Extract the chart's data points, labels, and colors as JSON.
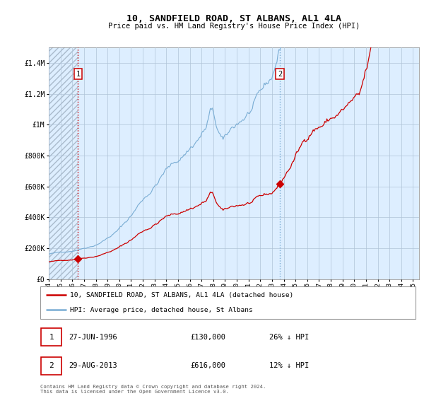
{
  "title": "10, SANDFIELD ROAD, ST ALBANS, AL1 4LA",
  "subtitle": "Price paid vs. HM Land Registry's House Price Index (HPI)",
  "legend_line1": "10, SANDFIELD ROAD, ST ALBANS, AL1 4LA (detached house)",
  "legend_line2": "HPI: Average price, detached house, St Albans",
  "annotation1_date": "27-JUN-1996",
  "annotation1_price": "£130,000",
  "annotation1_hpi": "26% ↓ HPI",
  "annotation2_date": "29-AUG-2013",
  "annotation2_price": "£616,000",
  "annotation2_hpi": "12% ↓ HPI",
  "footer": "Contains HM Land Registry data © Crown copyright and database right 2024.\nThis data is licensed under the Open Government Licence v3.0.",
  "xlim_start": 1994.0,
  "xlim_end": 2025.5,
  "ylim_min": 0,
  "ylim_max": 1500000,
  "sale1_year": 1996.49,
  "sale1_price": 130000,
  "sale2_year": 2013.66,
  "sale2_price": 616000,
  "line_color_red": "#cc0000",
  "line_color_blue": "#7aadd4",
  "bg_color": "#ddeeff",
  "hatch_color": "#aabbcc",
  "grid_color": "#b0c4d8",
  "annotation_box_color": "#cc0000",
  "vline1_color": "#cc0000",
  "vline2_color": "#7aadd4"
}
